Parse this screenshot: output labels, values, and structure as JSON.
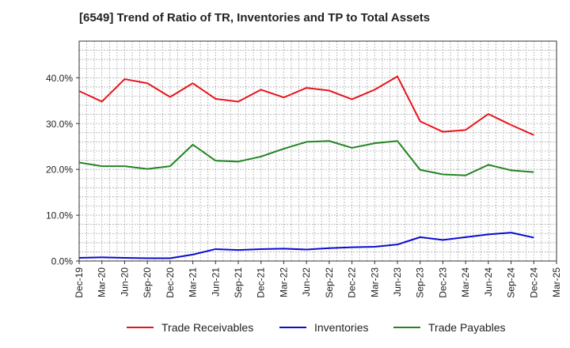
{
  "chart_data": {
    "type": "line",
    "title": "[6549]  Trend of Ratio of TR, Inventories and TP to Total Assets",
    "xlabel": "",
    "ylabel": "",
    "x": [
      "Dec-19",
      "Mar-20",
      "Jun-20",
      "Sep-20",
      "Dec-20",
      "Mar-21",
      "Jun-21",
      "Sep-21",
      "Dec-21",
      "Mar-22",
      "Jun-22",
      "Sep-22",
      "Dec-22",
      "Mar-23",
      "Jun-23",
      "Sep-23",
      "Dec-23",
      "Mar-24",
      "Jun-24",
      "Sep-24",
      "Dec-24"
    ],
    "x_ticks": [
      "Dec-19",
      "Mar-20",
      "Jun-20",
      "Sep-20",
      "Dec-20",
      "Mar-21",
      "Jun-21",
      "Sep-21",
      "Dec-21",
      "Mar-22",
      "Jun-22",
      "Sep-22",
      "Dec-22",
      "Mar-23",
      "Jun-23",
      "Sep-23",
      "Dec-23",
      "Mar-24",
      "Jun-24",
      "Sep-24",
      "Dec-24",
      "Mar-25"
    ],
    "y_ticks": [
      0,
      10,
      20,
      30,
      40
    ],
    "y_tick_labels": [
      "0.0%",
      "10.0%",
      "20.0%",
      "30.0%",
      "40.0%"
    ],
    "ylim": [
      0,
      48
    ],
    "grid": true,
    "legend_position": "bottom",
    "series": [
      {
        "name": "Trade Receivables",
        "color": "#e8141b",
        "values": [
          37.1,
          34.8,
          39.7,
          38.8,
          35.8,
          38.8,
          35.4,
          34.8,
          37.4,
          35.7,
          37.8,
          37.2,
          35.3,
          37.4,
          40.3,
          30.5,
          28.2,
          28.6,
          32.1,
          29.7,
          27.5
        ]
      },
      {
        "name": "Inventories",
        "color": "#0b0bd1",
        "values": [
          0.7,
          0.8,
          0.7,
          0.6,
          0.6,
          1.4,
          2.6,
          2.4,
          2.6,
          2.7,
          2.5,
          2.8,
          3.0,
          3.1,
          3.6,
          5.2,
          4.6,
          5.2,
          5.8,
          6.2,
          5.1
        ]
      },
      {
        "name": "Trade Payables",
        "color": "#238523",
        "values": [
          21.5,
          20.7,
          20.7,
          20.1,
          20.7,
          25.4,
          21.9,
          21.7,
          22.8,
          24.5,
          26.0,
          26.2,
          24.7,
          25.7,
          26.2,
          19.9,
          18.9,
          18.7,
          21.0,
          19.8,
          19.4
        ]
      }
    ]
  }
}
